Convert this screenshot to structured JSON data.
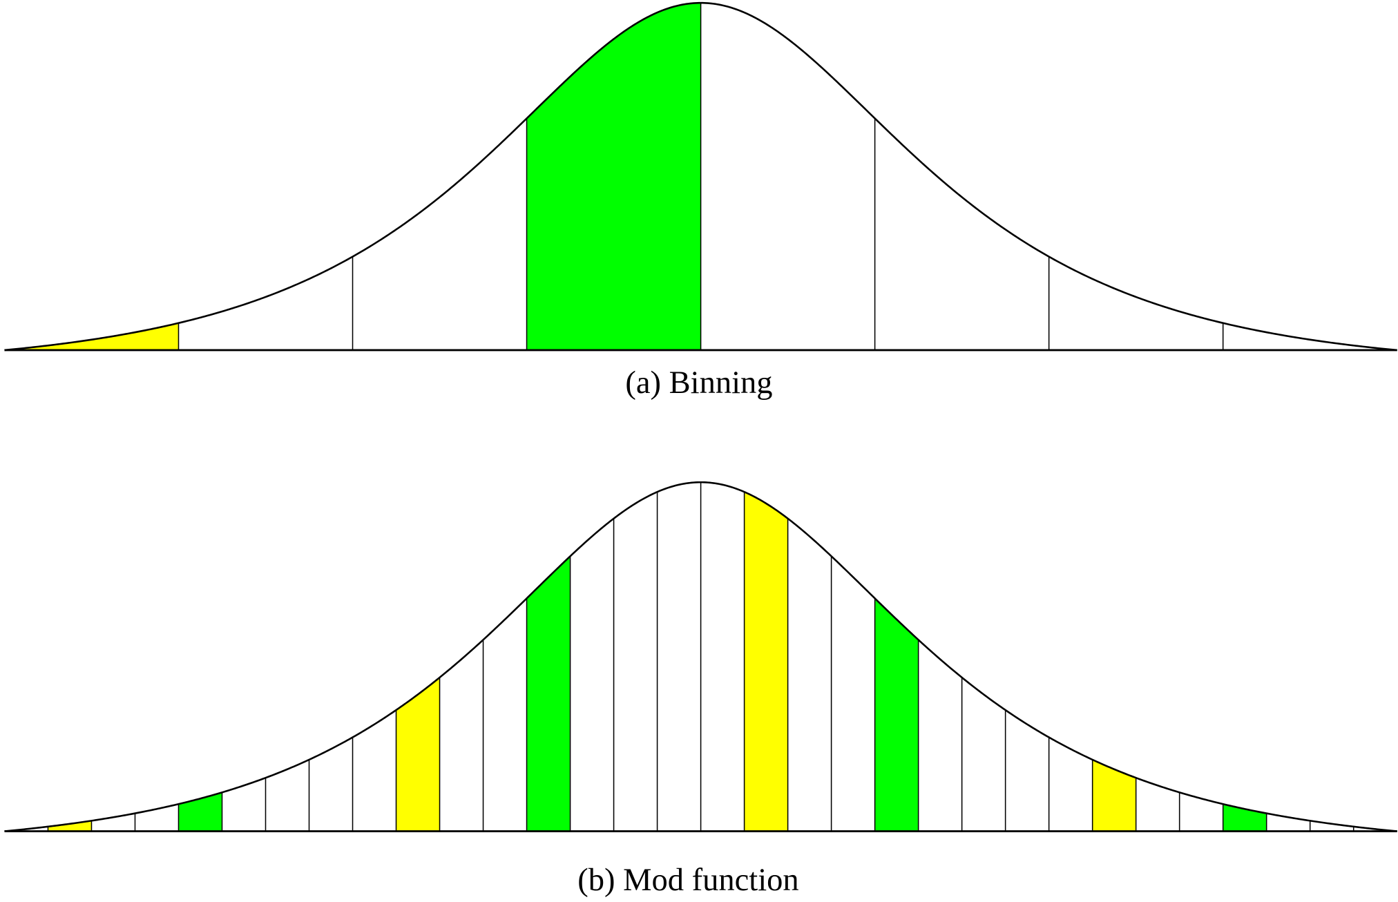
{
  "colors": {
    "yellow": "#ffff00",
    "green": "#00ff00",
    "line": "#000000",
    "background": "#ffffff"
  },
  "panels": [
    {
      "caption": "(a) Binning",
      "bin_count": 8,
      "highlighted_bins": [
        {
          "index": 0,
          "color": "yellow"
        },
        {
          "index": 3,
          "color": "green"
        }
      ]
    },
    {
      "caption": "(b) Mod function",
      "bin_count": 32,
      "highlighted_bins": [
        {
          "index": 1,
          "color": "yellow"
        },
        {
          "index": 4,
          "color": "green"
        },
        {
          "index": 9,
          "color": "yellow"
        },
        {
          "index": 12,
          "color": "green"
        },
        {
          "index": 17,
          "color": "yellow"
        },
        {
          "index": 20,
          "color": "green"
        },
        {
          "index": 25,
          "color": "yellow"
        },
        {
          "index": 28,
          "color": "green"
        }
      ]
    }
  ]
}
